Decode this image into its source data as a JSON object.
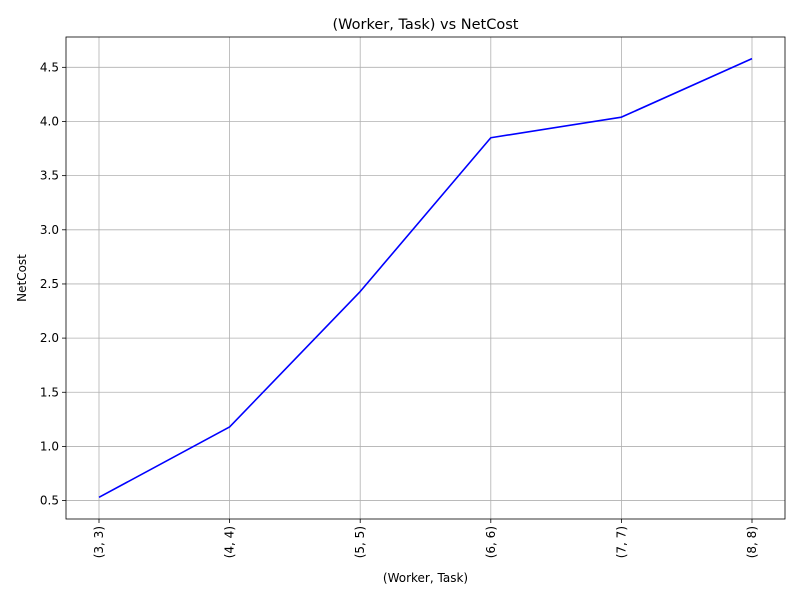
{
  "chart_data": {
    "type": "line",
    "title": "(Worker, Task) vs NetCost",
    "xlabel": "(Worker, Task)",
    "ylabel": "NetCost",
    "categories": [
      "(3, 3)",
      "(4, 4)",
      "(5, 5)",
      "(6, 6)",
      "(7, 7)",
      "(8, 8)"
    ],
    "series": [
      {
        "values": [
          0.53,
          1.18,
          2.43,
          3.85,
          4.04,
          4.58
        ],
        "color": "#0000ff"
      }
    ],
    "yticks": [
      "0.5",
      "1.0",
      "1.5",
      "2.0",
      "2.5",
      "3.0",
      "3.5",
      "4.0",
      "4.5"
    ],
    "ylim": [
      0.33,
      4.78
    ],
    "grid": true,
    "x_tick_rotation": "vertical"
  }
}
